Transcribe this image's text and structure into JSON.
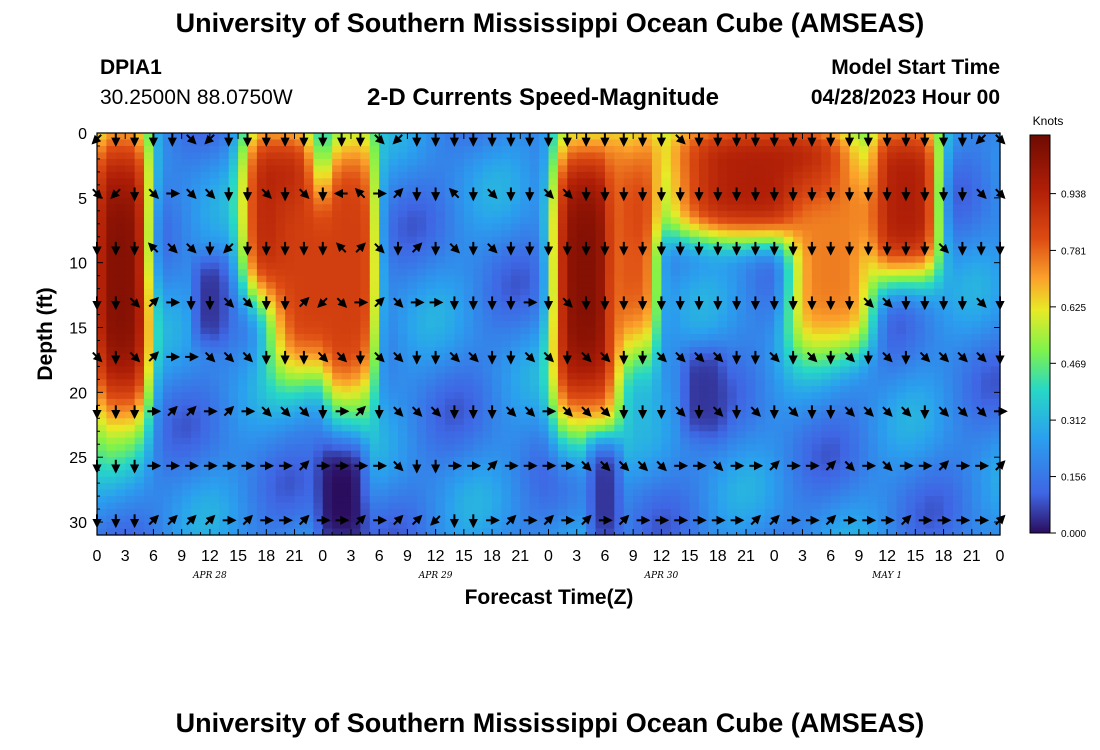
{
  "page": {
    "title_top": "University of Southern Mississippi Ocean Cube (AMSEAS)",
    "title_bottom": "University of Southern Mississippi Ocean Cube (AMSEAS)",
    "station": "DPIA1",
    "location": "30.2500N  88.0750W",
    "model_label": "Model Start Time",
    "model_time": "04/28/2023 Hour 00"
  },
  "chart_data": {
    "type": "heatmap",
    "title": "2-D Currents Speed-Magnitude",
    "xlabel": "Forecast Time(Z)",
    "ylabel": "Depth (ft)",
    "x_range_hours": [
      0,
      96
    ],
    "y_range_ft": [
      0,
      31
    ],
    "x_ticks": [
      "0",
      "3",
      "6",
      "9",
      "12",
      "15",
      "18",
      "21",
      "0",
      "3",
      "6",
      "9",
      "12",
      "15",
      "18",
      "21",
      "0",
      "3",
      "6",
      "9",
      "12",
      "15",
      "18",
      "21",
      "0",
      "3",
      "6",
      "9",
      "12",
      "15",
      "18",
      "21",
      "0"
    ],
    "y_ticks": [
      "0",
      "5",
      "10",
      "15",
      "20",
      "25",
      "30"
    ],
    "day_labels": [
      {
        "label": "APR 28",
        "hour": 12
      },
      {
        "label": "APR 29",
        "hour": 36
      },
      {
        "label": "APR 30",
        "hour": 60
      },
      {
        "label": "MAY 1",
        "hour": 84
      }
    ],
    "colorbar": {
      "unit": "Knots",
      "range": [
        0,
        1.1
      ],
      "ticks": [
        "0.938",
        "0.781",
        "0.625",
        "0.469",
        "0.312",
        "0.156",
        "0.000"
      ],
      "tick_values": [
        0.938,
        0.781,
        0.625,
        0.469,
        0.312,
        0.156,
        0.0
      ]
    },
    "speed_features": [
      {
        "t_range": [
          0,
          5
        ],
        "depth_range": [
          0,
          22
        ],
        "speed": 1.05
      },
      {
        "t_range": [
          16,
          23
        ],
        "depth_range": [
          0,
          12
        ],
        "speed": 0.95
      },
      {
        "t_range": [
          19,
          28
        ],
        "depth_range": [
          5,
          18
        ],
        "speed": 0.85
      },
      {
        "t_range": [
          25,
          29
        ],
        "depth_range": [
          0,
          20
        ],
        "speed": 0.85
      },
      {
        "t_range": [
          49,
          55
        ],
        "depth_range": [
          0,
          22
        ],
        "speed": 1.05
      },
      {
        "t_range": [
          55,
          59
        ],
        "depth_range": [
          0,
          17
        ],
        "speed": 0.8
      },
      {
        "t_range": [
          60,
          82
        ],
        "depth_range": [
          0,
          7
        ],
        "speed": 0.95
      },
      {
        "t_range": [
          74,
          82
        ],
        "depth_range": [
          5,
          16
        ],
        "speed": 0.75
      },
      {
        "t_range": [
          83,
          89
        ],
        "depth_range": [
          0,
          10
        ],
        "speed": 0.95
      },
      {
        "t_range": [
          24,
          28
        ],
        "depth_range": [
          25,
          31
        ],
        "speed": 0.0
      },
      {
        "t_range": [
          11,
          13
        ],
        "depth_range": [
          11,
          15
        ],
        "speed": 0.05
      },
      {
        "t_range": [
          63,
          66
        ],
        "depth_range": [
          18,
          22
        ],
        "speed": 0.05
      },
      {
        "t_range": [
          53,
          55
        ],
        "depth_range": [
          25,
          31
        ],
        "speed": 0.05
      }
    ],
    "vector_depths_ft": [
      0,
      4.2,
      8.4,
      12.6,
      16.8,
      21,
      25.2,
      29.4
    ],
    "vector_hours_step": 2,
    "vector_pattern": [
      {
        "depth_ft": 0,
        "directions_deg": [
          225,
          180,
          180,
          180,
          180,
          135,
          225,
          180,
          180,
          180,
          180,
          180,
          180,
          180,
          180,
          135,
          225,
          180,
          180,
          180,
          180,
          180,
          180,
          180,
          180,
          180,
          180,
          180,
          180,
          180,
          180,
          135,
          180,
          180,
          180,
          180,
          180,
          180,
          180,
          180,
          180,
          180,
          180,
          180,
          180,
          180,
          180,
          225,
          135
        ]
      },
      {
        "depth_ft": 4.2,
        "directions_deg": [
          135,
          225,
          180,
          135,
          90,
          135,
          135,
          180,
          180,
          135,
          180,
          135,
          180,
          270,
          315,
          90,
          45,
          180,
          180,
          315,
          180,
          135,
          180,
          180,
          135,
          135,
          180,
          180,
          180,
          180,
          180,
          180,
          180,
          180,
          180,
          180,
          180,
          180,
          180,
          180,
          180,
          180,
          180,
          180,
          180,
          180,
          180,
          135,
          135
        ]
      },
      {
        "depth_ft": 8.4,
        "directions_deg": [
          180,
          180,
          180,
          315,
          135,
          135,
          180,
          225,
          180,
          180,
          180,
          180,
          180,
          315,
          45,
          135,
          180,
          45,
          180,
          135,
          180,
          135,
          180,
          180,
          180,
          180,
          180,
          180,
          180,
          180,
          180,
          180,
          180,
          180,
          180,
          180,
          180,
          180,
          180,
          180,
          180,
          180,
          180,
          180,
          180,
          135,
          180,
          180,
          180
        ]
      },
      {
        "depth_ft": 12.6,
        "directions_deg": [
          180,
          180,
          135,
          45,
          90,
          180,
          180,
          135,
          135,
          180,
          180,
          45,
          225,
          135,
          90,
          45,
          135,
          90,
          90,
          180,
          180,
          180,
          180,
          90,
          180,
          135,
          180,
          180,
          180,
          180,
          180,
          180,
          180,
          180,
          180,
          180,
          180,
          180,
          180,
          180,
          180,
          135,
          135,
          180,
          180,
          180,
          180,
          135,
          180
        ]
      },
      {
        "depth_ft": 16.8,
        "directions_deg": [
          135,
          180,
          135,
          45,
          90,
          90,
          135,
          135,
          135,
          180,
          180,
          180,
          135,
          135,
          180,
          135,
          135,
          180,
          180,
          135,
          135,
          180,
          180,
          135,
          135,
          180,
          135,
          135,
          180,
          180,
          135,
          135,
          135,
          135,
          180,
          180,
          135,
          180,
          135,
          180,
          135,
          180,
          135,
          180,
          135,
          135,
          135,
          135,
          180
        ]
      },
      {
        "depth_ft": 21,
        "directions_deg": [
          180,
          180,
          180,
          90,
          45,
          45,
          90,
          45,
          90,
          135,
          135,
          135,
          180,
          90,
          45,
          180,
          135,
          135,
          135,
          180,
          180,
          180,
          135,
          135,
          90,
          135,
          135,
          135,
          180,
          180,
          180,
          135,
          180,
          135,
          180,
          135,
          180,
          135,
          180,
          180,
          135,
          135,
          135,
          135,
          180,
          135,
          135,
          135,
          90
        ]
      },
      {
        "depth_ft": 25.2,
        "directions_deg": [
          180,
          180,
          180,
          90,
          90,
          90,
          90,
          90,
          90,
          90,
          90,
          45,
          90,
          90,
          90,
          90,
          135,
          180,
          180,
          90,
          90,
          45,
          90,
          90,
          90,
          90,
          135,
          135,
          135,
          135,
          135,
          90,
          90,
          135,
          90,
          90,
          45,
          90,
          90,
          45,
          135,
          90,
          135,
          90,
          90,
          45,
          90,
          90,
          45
        ]
      },
      {
        "depth_ft": 29.4,
        "directions_deg": [
          180,
          180,
          180,
          45,
          45,
          45,
          45,
          90,
          45,
          90,
          90,
          45,
          90,
          90,
          45,
          90,
          45,
          45,
          225,
          180,
          180,
          90,
          45,
          90,
          45,
          90,
          45,
          90,
          45,
          90,
          90,
          90,
          90,
          90,
          90,
          45,
          45,
          90,
          90,
          45,
          90,
          90,
          90,
          45,
          90,
          90,
          90,
          90,
          45
        ]
      }
    ]
  }
}
